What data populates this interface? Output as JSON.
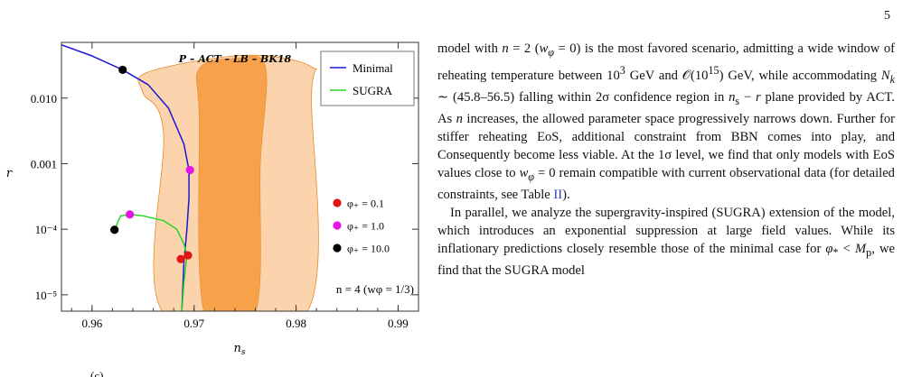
{
  "page": {
    "number": "5"
  },
  "figure": {
    "caption_fragment": "(c)",
    "chart_data": {
      "type": "scatter",
      "title": "P – ACT – LB – BK18",
      "xlabel": "n_s",
      "ylabel": "r",
      "xlim": [
        0.957,
        0.992
      ],
      "ylim_log10": [
        -5.25,
        -1.15
      ],
      "yscale": "log",
      "x_ticks": [
        0.96,
        0.97,
        0.98,
        0.99
      ],
      "x_tick_labels": [
        "0.96",
        "0.97",
        "0.98",
        "0.99"
      ],
      "y_ticks": [
        1e-05,
        0.0001,
        0.001,
        0.01
      ],
      "y_tick_labels": [
        "10⁻⁵",
        "10⁻⁴",
        "0.001",
        "0.010"
      ],
      "grid": false,
      "annotation": "n = 4 (w_φ = 1/3)",
      "legend_placement": "top-right",
      "colors": {
        "band_2sigma": "#fbd4ad",
        "band_1sigma": "#f7a24a",
        "contour_edge": "#e58a2c",
        "minimal": "#1818d6",
        "sugra": "#22d822",
        "phi_0_1": "#e01515",
        "phi_1_0": "#e515e5",
        "phi_10_0": "#000000"
      },
      "bands": {
        "two_sigma_ns": [
          0.967,
          0.981
        ],
        "one_sigma_ns": [
          0.971,
          0.9765
        ],
        "two_sigma_outline": [
          [
            0.9655,
            0.025
          ],
          [
            0.975,
            0.045
          ],
          [
            0.9815,
            0.03
          ],
          [
            0.9815,
            0.01
          ],
          [
            0.981,
            2e-05
          ],
          [
            0.967,
            2e-05
          ],
          [
            0.967,
            0.003
          ],
          [
            0.965,
            0.012
          ]
        ],
        "one_sigma_outline": [
          [
            0.9705,
            0.028
          ],
          [
            0.974,
            0.04
          ],
          [
            0.977,
            0.03
          ],
          [
            0.9765,
            0.001
          ],
          [
            0.976,
            2e-05
          ],
          [
            0.971,
            2e-05
          ],
          [
            0.9705,
            0.005
          ]
        ]
      },
      "series": [
        {
          "name": "Minimal",
          "type": "line",
          "x": [
            0.957,
            0.96,
            0.963,
            0.9655,
            0.9675,
            0.969,
            0.9695,
            0.9695,
            0.9693,
            0.969,
            0.9688
          ],
          "y": [
            0.065,
            0.044,
            0.027,
            0.016,
            0.007,
            0.002,
            0.0008,
            0.0003,
            0.0001,
            3e-05,
            5.6e-06
          ]
        },
        {
          "name": "SUGRA",
          "type": "line",
          "x": [
            0.9622,
            0.9628,
            0.9637,
            0.965,
            0.967,
            0.9683,
            0.969,
            0.9693,
            0.969,
            0.9688
          ],
          "y": [
            9.8e-05,
            0.00016,
            0.000168,
            0.00016,
            0.000135,
            0.0001,
            6e-05,
            4e-05,
            1.5e-05,
            5.6e-06
          ]
        }
      ],
      "points": [
        {
          "legend": "φ* = 0.1",
          "color_key": "phi_0_1",
          "x": 0.9687,
          "y": 3.5e-05
        },
        {
          "legend": "φ* = 0.1",
          "color_key": "phi_0_1",
          "x": 0.9694,
          "y": 4e-05
        },
        {
          "legend": "φ* = 1.0",
          "color_key": "phi_1_0",
          "x": 0.9637,
          "y": 0.000168
        },
        {
          "legend": "φ* = 1.0",
          "color_key": "phi_1_0",
          "x": 0.9696,
          "y": 0.0008
        },
        {
          "legend": "φ* = 10.0",
          "color_key": "phi_10_0",
          "x": 0.9622,
          "y": 9.8e-05
        },
        {
          "legend": "φ* = 10.0",
          "color_key": "phi_10_0",
          "x": 0.963,
          "y": 0.027
        }
      ],
      "point_legend": [
        "φ* = 0.1",
        "φ* = 1.0",
        "φ* = 10.0"
      ]
    }
  },
  "text": {
    "p1_a": "model with ",
    "p1_b": "n",
    "p1_c": " = 2 (",
    "p1_d": "w",
    "p1_e": "φ",
    "p1_f": " = 0) is the most favored scenario, admitting a wide window of reheating temperature between 10",
    "p1_g": "3",
    "p1_h": " GeV and 𝒪(10",
    "p1_i": "15",
    "p1_j": ") GeV, while accommodating ",
    "p1_k": "N",
    "p1_l": "k",
    "p1_m": " ∼ (45.8–56.5) falling within 2σ confidence region in ",
    "p1_n": "n",
    "p1_o": "s",
    "p1_p": " − ",
    "p1_q": "r",
    "p1_r": " plane provided by ACT. As ",
    "p1_s": "n",
    "p1_t": " increases, the allowed parameter space progressively narrows down. Further for stiffer reheating EoS, additional constraint from BBN comes into play, and Consequently become less viable. At the 1σ level, we find that only models with EoS values close to ",
    "p1_u": "w",
    "p1_v": "φ",
    "p1_w": " = 0 remain compatible with current observational data (for detailed constraints, see Table ",
    "p1_x": "II",
    "p1_y": ").",
    "p2_a": "In parallel, we analyze the supergravity-inspired (SUGRA) extension of the model, which introduces an exponential suppression at large field values. While its inflationary predictions closely resemble those of the minimal case for ",
    "p2_b": "φ",
    "p2_c": "*",
    "p2_d": " < ",
    "p2_e": "M",
    "p2_f": "p",
    "p2_g": ", we find that the SUGRA model"
  }
}
